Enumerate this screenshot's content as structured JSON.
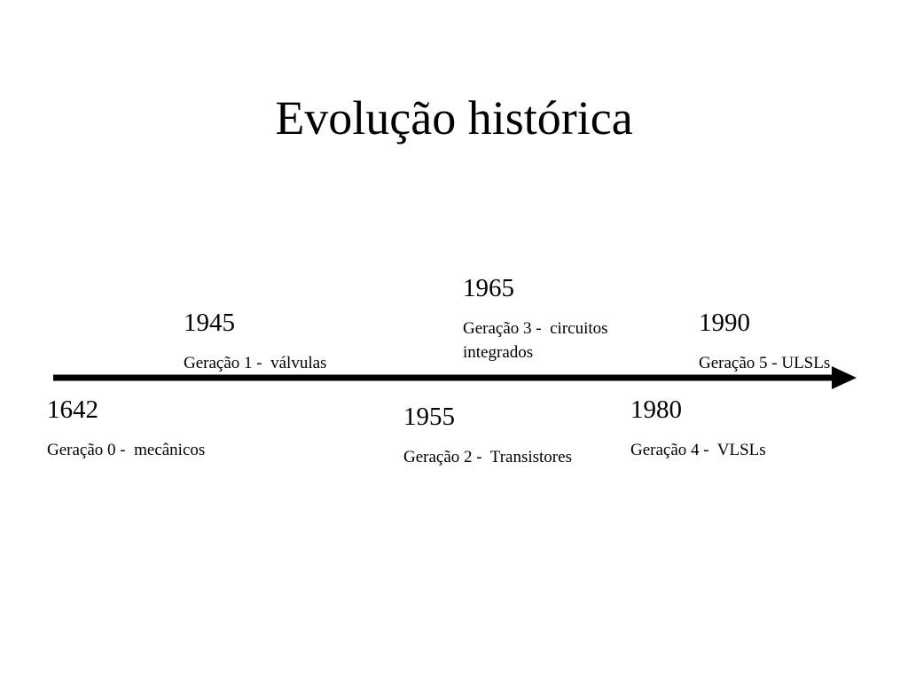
{
  "title": "Evolução histórica",
  "events": [
    {
      "year": "1642",
      "label": "Geração 0 -  mecânicos"
    },
    {
      "year": "1945",
      "label": "Geração 1 -  válvulas"
    },
    {
      "year": "1955",
      "label": "Geração 2 -  Transistores"
    },
    {
      "year": "1965",
      "label": "Geração 3 -  circuitos integrados"
    },
    {
      "year": "1980",
      "label": "Geração 4 -  VLSLs"
    },
    {
      "year": "1990",
      "label": "Geração 5 - ULSLs"
    }
  ]
}
